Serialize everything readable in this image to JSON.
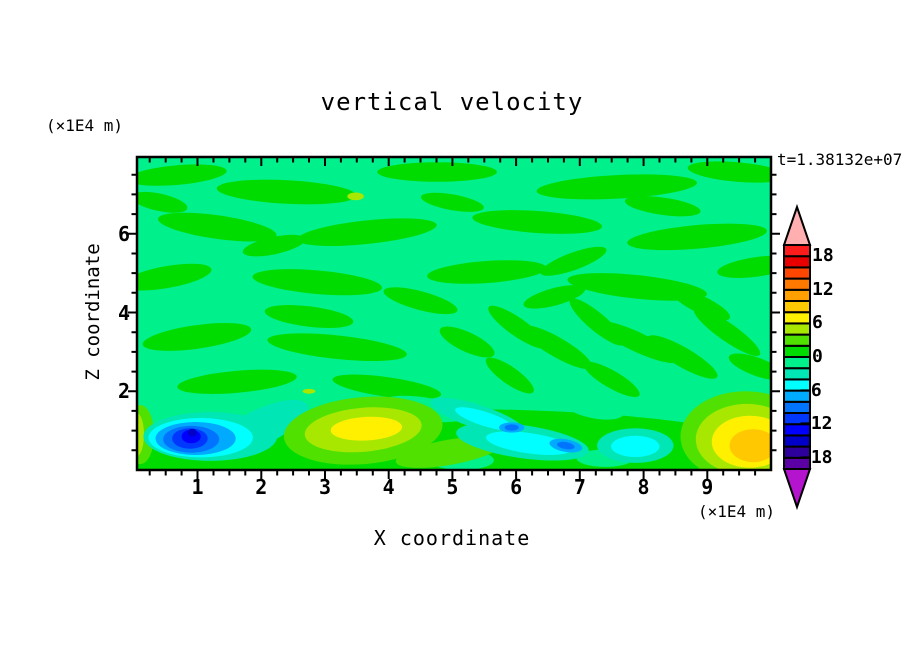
{
  "title": "vertical velocity",
  "timestamp": "t=1.38132e+07",
  "axes": {
    "x": {
      "label": "X coordinate",
      "unit": "(×1E4 m)",
      "tick_labels": [
        "1",
        "2",
        "3",
        "4",
        "5",
        "6",
        "7",
        "8",
        "9"
      ],
      "tick_values": [
        1,
        2,
        3,
        4,
        5,
        6,
        7,
        8,
        9
      ],
      "minor_step": 0.25,
      "range": [
        0.05,
        10.0
      ]
    },
    "y": {
      "label": "Z coordinate",
      "unit": "(×1E4 m)",
      "tick_labels": [
        "2",
        "4",
        "6"
      ],
      "tick_values": [
        2,
        4,
        6
      ],
      "minor_step": 0.5,
      "range": [
        0,
        7.95
      ]
    }
  },
  "colorbar": {
    "tick_labels": [
      "18",
      "12",
      "6",
      "0",
      "−6",
      "−12",
      "−18"
    ],
    "tick_values": [
      18,
      12,
      6,
      0,
      -6,
      -12,
      -18
    ],
    "min": -20,
    "max": 20,
    "step": 2,
    "colors_low_to_high": [
      "#5A00A5",
      "#2D009C",
      "#0000C8",
      "#0000FF",
      "#0037FF",
      "#0073FF",
      "#00AAFF",
      "#00FFFF",
      "#00E6B4",
      "#00F08C",
      "#00DC00",
      "#50E100",
      "#A8E800",
      "#FFF000",
      "#FFC800",
      "#FFA000",
      "#FF7800",
      "#FF4600",
      "#E80000",
      "#FC1C1C"
    ],
    "over_color": "#FFAFAF",
    "under_color": "#B414CD"
  },
  "chart_data": {
    "type": "filled-contour",
    "title": "vertical velocity",
    "xlabel": "X coordinate (×1E4 m)",
    "ylabel": "Z coordinate (×1E4 m)",
    "time_annotation": "t=1.38132e+07",
    "x_range": [
      0.05,
      10.0
    ],
    "z_range": [
      0,
      7.95
    ],
    "contour_interval": 2,
    "level_range": [
      -20,
      20
    ],
    "base_level": -2,
    "description": "Background of -2..0 (spring green) interleaved with 0..2 (green) wave striations; strong downdraft (to -16) near x=1 z=0.8, updrafts (to +8) near x=3.6 and x=9.6 at low z, cyan downdraft streaks (to -10) between x=5 and x=8 near the surface.",
    "feature_format": [
      "x",
      "z",
      "rx",
      "ry",
      "rot_deg",
      "level_low"
    ],
    "features": [
      [
        0.68,
        7.49,
        0.78,
        0.25,
        -5,
        0
      ],
      [
        2.4,
        7.06,
        1.1,
        0.3,
        3,
        0
      ],
      [
        4.76,
        7.57,
        0.94,
        0.25,
        0,
        0
      ],
      [
        7.58,
        7.19,
        1.26,
        0.3,
        -3,
        0
      ],
      [
        9.47,
        7.57,
        0.78,
        0.25,
        5,
        0
      ],
      [
        0.4,
        6.8,
        0.45,
        0.22,
        12,
        0
      ],
      [
        1.31,
        6.17,
        0.94,
        0.3,
        8,
        0
      ],
      [
        3.66,
        6.04,
        1.1,
        0.3,
        -6,
        0
      ],
      [
        5.0,
        6.8,
        0.5,
        0.2,
        10,
        0
      ],
      [
        6.33,
        6.3,
        1.02,
        0.28,
        4,
        0
      ],
      [
        8.3,
        6.7,
        0.6,
        0.22,
        8,
        0
      ],
      [
        8.84,
        5.92,
        1.1,
        0.3,
        -5,
        0
      ],
      [
        2.2,
        5.7,
        0.5,
        0.22,
        -12,
        0
      ],
      [
        0.52,
        4.9,
        0.71,
        0.28,
        -10,
        0
      ],
      [
        2.88,
        4.77,
        1.02,
        0.3,
        5,
        0
      ],
      [
        5.54,
        5.03,
        0.94,
        0.28,
        -4,
        0
      ],
      [
        6.9,
        5.3,
        0.55,
        0.22,
        -20,
        0
      ],
      [
        7.9,
        4.65,
        1.1,
        0.3,
        6,
        0
      ],
      [
        9.78,
        5.16,
        0.63,
        0.25,
        -8,
        0
      ],
      [
        4.5,
        4.3,
        0.6,
        0.24,
        15,
        0
      ],
      [
        8.9,
        4.2,
        0.5,
        0.22,
        25,
        0
      ],
      [
        2.75,
        3.9,
        0.7,
        0.26,
        7,
        0
      ],
      [
        0.99,
        3.38,
        0.86,
        0.3,
        -8,
        0
      ],
      [
        3.19,
        3.12,
        1.1,
        0.3,
        6,
        0
      ],
      [
        5.23,
        3.25,
        0.47,
        0.25,
        25,
        0
      ],
      [
        6.02,
        3.63,
        0.55,
        0.23,
        35,
        0
      ],
      [
        6.64,
        3.12,
        0.63,
        0.25,
        30,
        0
      ],
      [
        7.27,
        3.76,
        0.55,
        0.23,
        40,
        0
      ],
      [
        7.9,
        3.25,
        0.71,
        0.25,
        25,
        0
      ],
      [
        8.61,
        2.87,
        0.63,
        0.25,
        30,
        0
      ],
      [
        9.31,
        3.51,
        0.63,
        0.23,
        35,
        0
      ],
      [
        6.6,
        4.4,
        0.5,
        0.22,
        -15,
        0
      ],
      [
        1.62,
        2.24,
        0.94,
        0.28,
        -5,
        0
      ],
      [
        3.97,
        2.11,
        0.86,
        0.25,
        8,
        0
      ],
      [
        5.9,
        2.4,
        0.45,
        0.22,
        35,
        0
      ],
      [
        7.5,
        2.3,
        0.5,
        0.22,
        30,
        0
      ],
      [
        9.78,
        2.62,
        0.47,
        0.23,
        20,
        0
      ],
      [
        5.0,
        0.3,
        5.3,
        1.25,
        0,
        0
      ],
      [
        1.5,
        0.15,
        1.6,
        0.5,
        0,
        0
      ],
      [
        8.2,
        0.2,
        1.8,
        0.5,
        0,
        0
      ],
      [
        4.55,
        1.55,
        0.7,
        0.3,
        8,
        -2
      ],
      [
        7.2,
        1.6,
        0.5,
        0.28,
        12,
        -2
      ],
      [
        8.75,
        1.5,
        0.45,
        0.25,
        0,
        -2
      ],
      [
        5.15,
        0.25,
        0.5,
        0.25,
        0,
        -2
      ],
      [
        7.4,
        0.3,
        0.45,
        0.22,
        0,
        -2
      ],
      [
        3.48,
        6.95,
        0.13,
        0.1,
        0,
        4
      ],
      [
        2.75,
        2.0,
        0.1,
        0.06,
        0,
        4
      ],
      [
        0.1,
        0.9,
        0.22,
        0.75,
        0,
        2
      ],
      [
        0.04,
        0.9,
        0.12,
        0.55,
        0,
        4
      ],
      [
        1.2,
        0.85,
        1.05,
        0.62,
        0,
        -4
      ],
      [
        2.0,
        1.1,
        0.8,
        0.45,
        -25,
        -4
      ],
      [
        1.05,
        0.82,
        0.82,
        0.5,
        0,
        -6
      ],
      [
        0.97,
        0.8,
        0.63,
        0.42,
        0,
        -8
      ],
      [
        0.9,
        0.78,
        0.44,
        0.34,
        0,
        -10
      ],
      [
        0.88,
        0.8,
        0.28,
        0.26,
        0,
        -12
      ],
      [
        0.9,
        0.85,
        0.15,
        0.17,
        0,
        -14
      ],
      [
        0.92,
        0.95,
        0.07,
        0.1,
        0,
        -16
      ],
      [
        3.6,
        1.0,
        1.25,
        0.85,
        -5,
        2
      ],
      [
        4.95,
        0.45,
        0.85,
        0.32,
        -10,
        2
      ],
      [
        3.6,
        1.02,
        0.92,
        0.56,
        -5,
        4
      ],
      [
        3.65,
        1.05,
        0.56,
        0.3,
        -3,
        6
      ],
      [
        4.95,
        1.6,
        0.3,
        0.15,
        20,
        -4
      ],
      [
        5.4,
        1.35,
        0.78,
        0.3,
        18,
        -4
      ],
      [
        6.1,
        0.72,
        1.05,
        0.42,
        8,
        -4
      ],
      [
        5.5,
        1.3,
        0.48,
        0.18,
        18,
        -6
      ],
      [
        6.2,
        0.68,
        0.68,
        0.26,
        8,
        -6
      ],
      [
        5.93,
        1.08,
        0.2,
        0.13,
        0,
        -8
      ],
      [
        5.93,
        1.08,
        0.11,
        0.08,
        0,
        -10
      ],
      [
        6.78,
        0.62,
        0.26,
        0.16,
        10,
        -8
      ],
      [
        6.78,
        0.62,
        0.14,
        0.09,
        10,
        -10
      ],
      [
        7.87,
        0.62,
        0.6,
        0.44,
        0,
        -4
      ],
      [
        7.87,
        0.6,
        0.38,
        0.27,
        0,
        -6
      ],
      [
        9.6,
        0.85,
        1.02,
        1.15,
        0,
        2
      ],
      [
        9.62,
        0.78,
        0.8,
        0.9,
        0,
        4
      ],
      [
        9.67,
        0.72,
        0.6,
        0.66,
        0,
        6
      ],
      [
        9.72,
        0.62,
        0.37,
        0.42,
        0,
        8
      ]
    ]
  }
}
